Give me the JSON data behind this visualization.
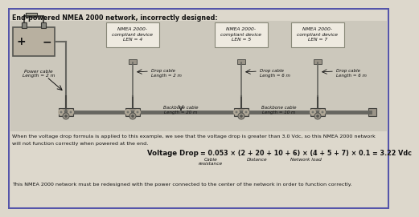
{
  "title": "End-powered NMEA 2000 network, incorrectly designed:",
  "bg_color": "#ddd8cc",
  "border_color": "#5555aa",
  "text_color": "#111111",
  "body_text1": "When the voltage drop formula is applied to this example, we see that the voltage drop is greater than 3.0 Vdc, so this NMEA 2000 network",
  "body_text2": "will not function correctly when powered at the end.",
  "voltage_drop_full": "Voltage Drop = 0.053 × (2 + 20 + 10 + 6) × (4 + 5 + 7) × 0.1 = 3.22 Vdc",
  "sub_label1": "Cable",
  "sub_label2": "resistance",
  "sub_label3": "Distance",
  "sub_label4": "Network load",
  "footer_text": "This NMEA 2000 network must be redesigned with the power connected to the center of the network in order to function correctly.",
  "device1_text": "NMEA 2000-\ncompliant device\nLEN = 4",
  "device2_text": "NMEA 2000-\ncompliant device\nLEN = 5",
  "device3_text": "NMEA 2000-\ncompliant device\nLEN = 7",
  "power_cable_text": "Power cable\nLength = 2 m",
  "drop1_text": "Drop cable\nLength = 2 m",
  "drop2_text": "Drop cable\nLength = 6 m",
  "drop3_text": "Drop cable\nLength = 6 m",
  "backbone1_text": "Backbone cable\nLength = 20 m",
  "backbone2_text": "Backbone cable\nLength = 10 m",
  "diagram_bg": "#ccc8bc",
  "box_bg": "#eeeae0",
  "box_edge": "#888878",
  "cable_color": "#666660",
  "connector_face": "#9a9488",
  "connector_edge": "#444440"
}
